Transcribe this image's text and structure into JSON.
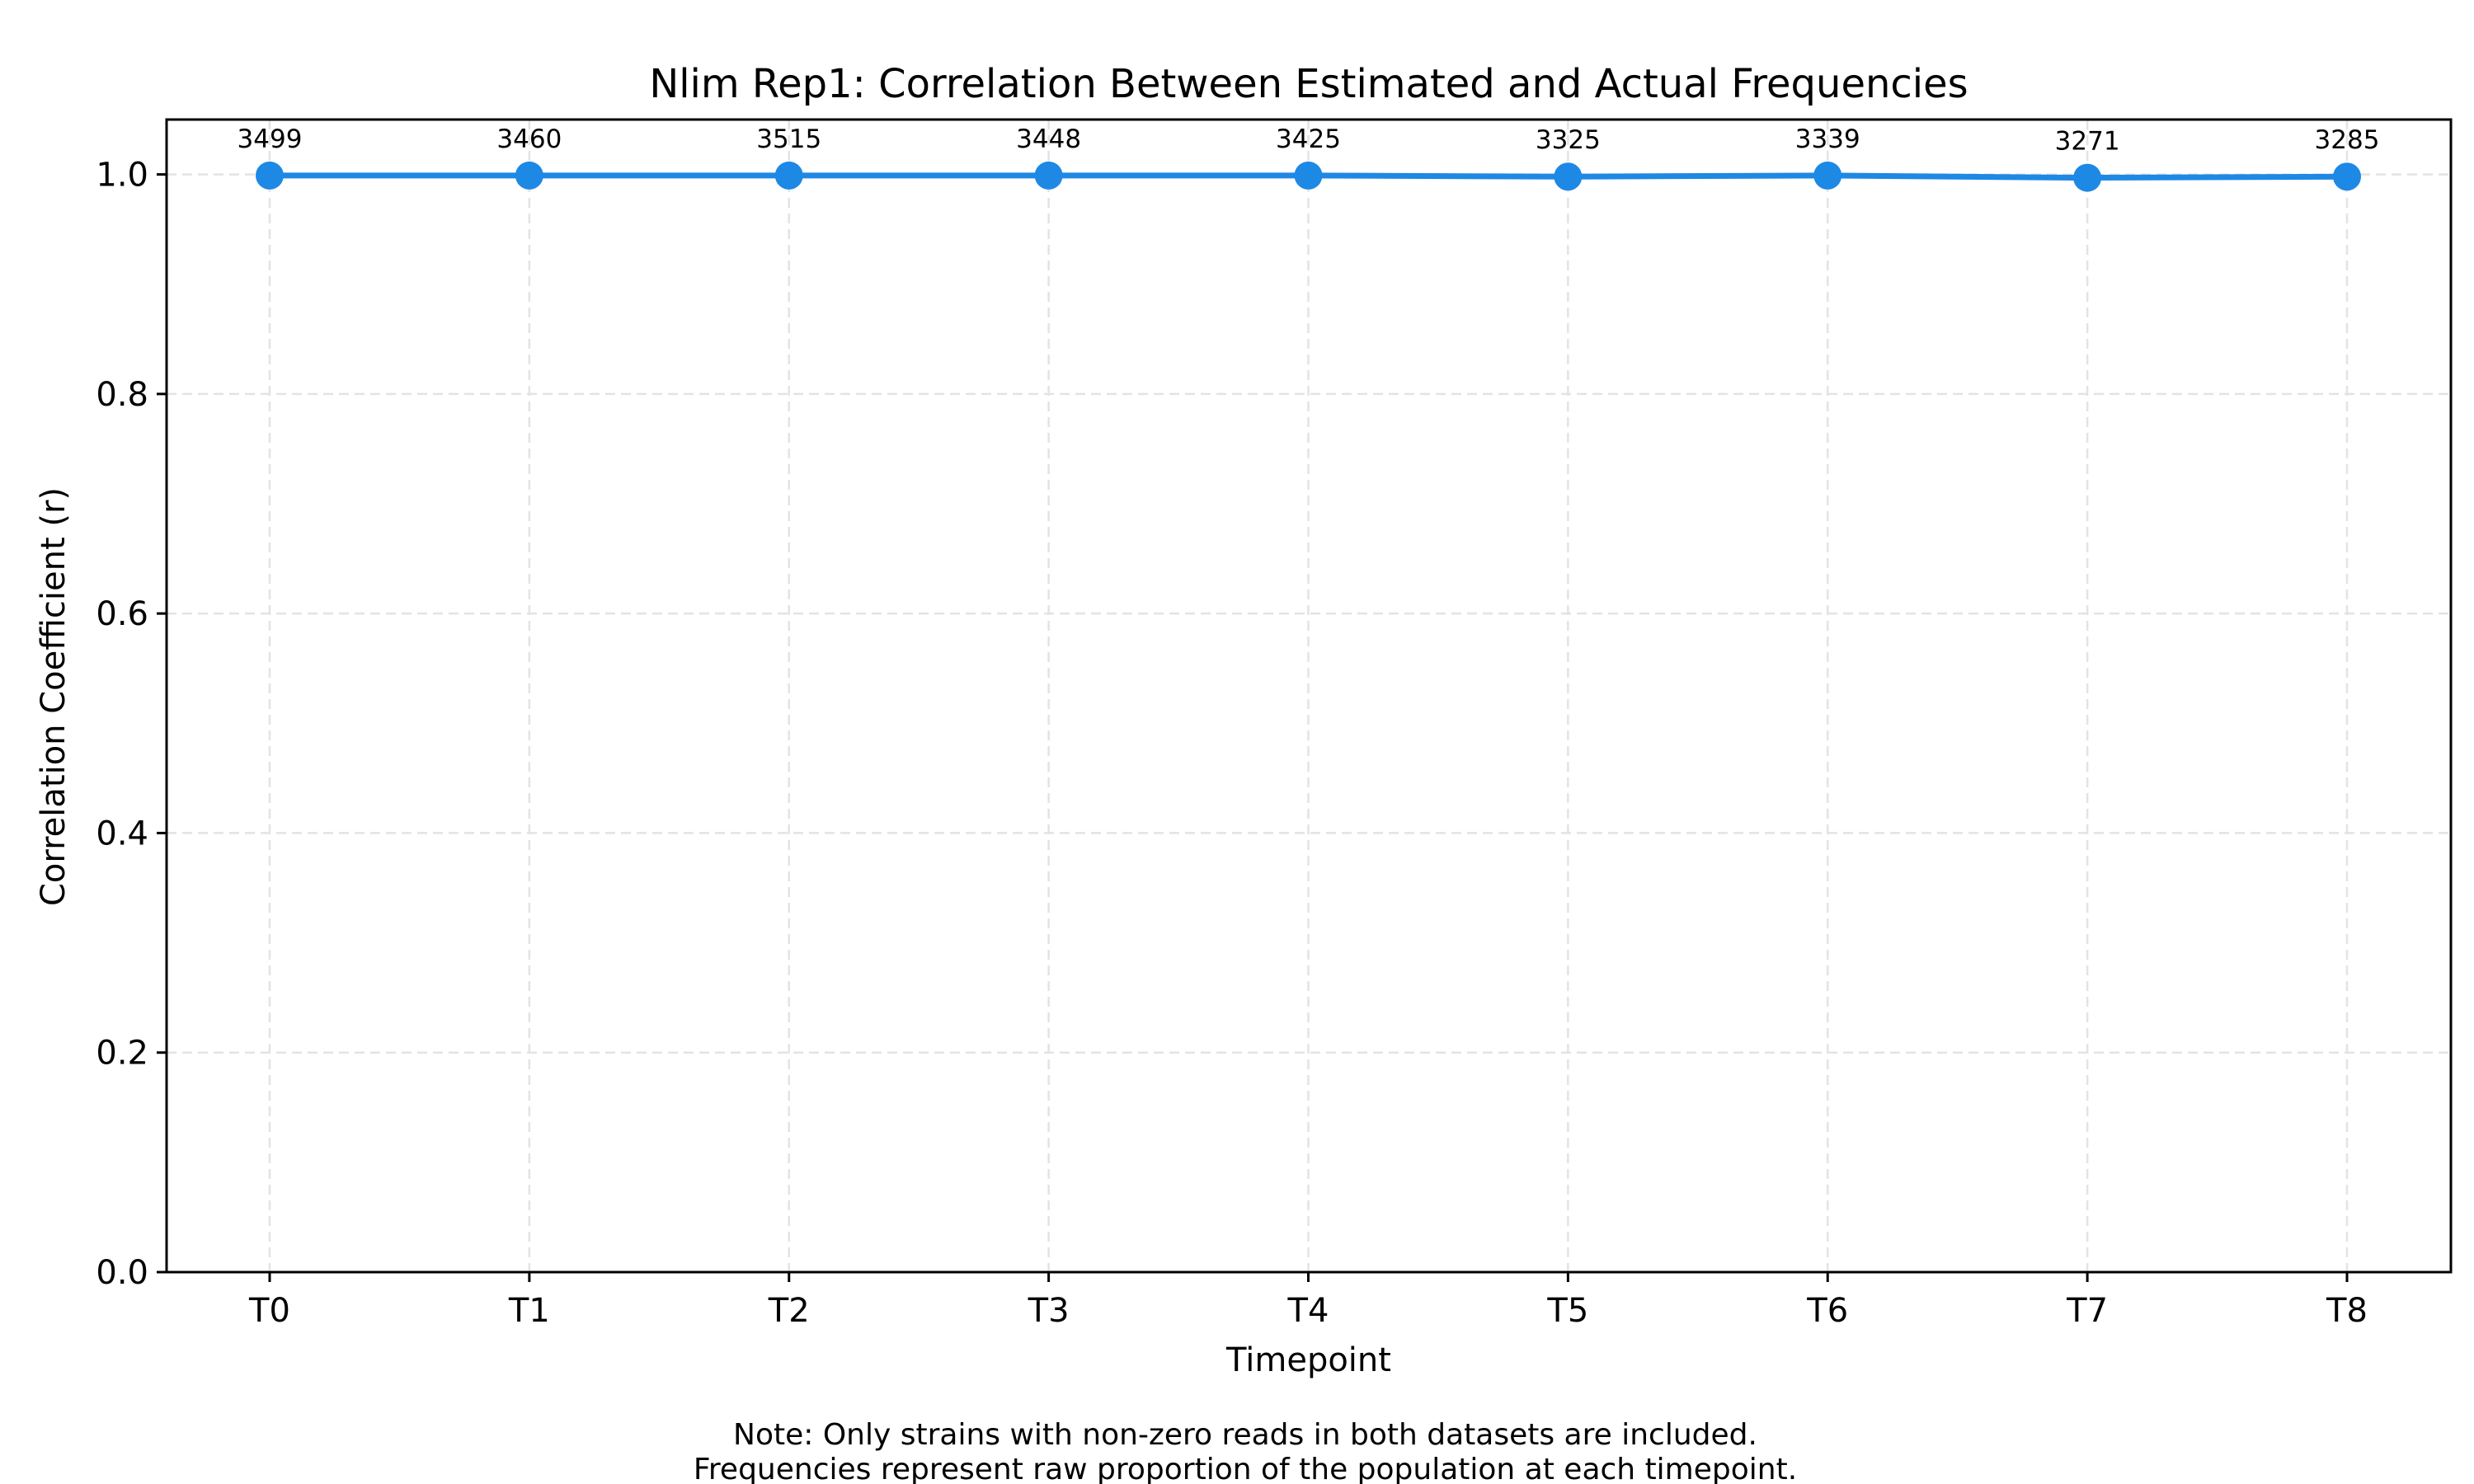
{
  "chart_data": {
    "type": "line",
    "title": "Nlim Rep1: Correlation Between Estimated and Actual Frequencies",
    "xlabel": "Timepoint",
    "ylabel": "Correlation Coefficient (r)",
    "categories": [
      "T0",
      "T1",
      "T2",
      "T3",
      "T4",
      "T5",
      "T6",
      "T7",
      "T8"
    ],
    "series": [
      {
        "values": [
          0.999,
          0.999,
          0.999,
          0.999,
          0.999,
          0.998,
          0.999,
          0.997,
          0.998
        ],
        "color": "#1e88e5"
      }
    ],
    "point_labels": [
      "3499",
      "3460",
      "3515",
      "3448",
      "3425",
      "3325",
      "3339",
      "3271",
      "3285"
    ],
    "ylim": [
      0.0,
      1.05
    ],
    "yticks": [
      "0.0",
      "0.2",
      "0.4",
      "0.6",
      "0.8",
      "1.0"
    ],
    "grid": true,
    "grid_style": "dashed",
    "notes": [
      "Note: Only strains with non-zero reads in both datasets are included.",
      "Frequencies represent raw proportion of the population at each timepoint."
    ]
  }
}
